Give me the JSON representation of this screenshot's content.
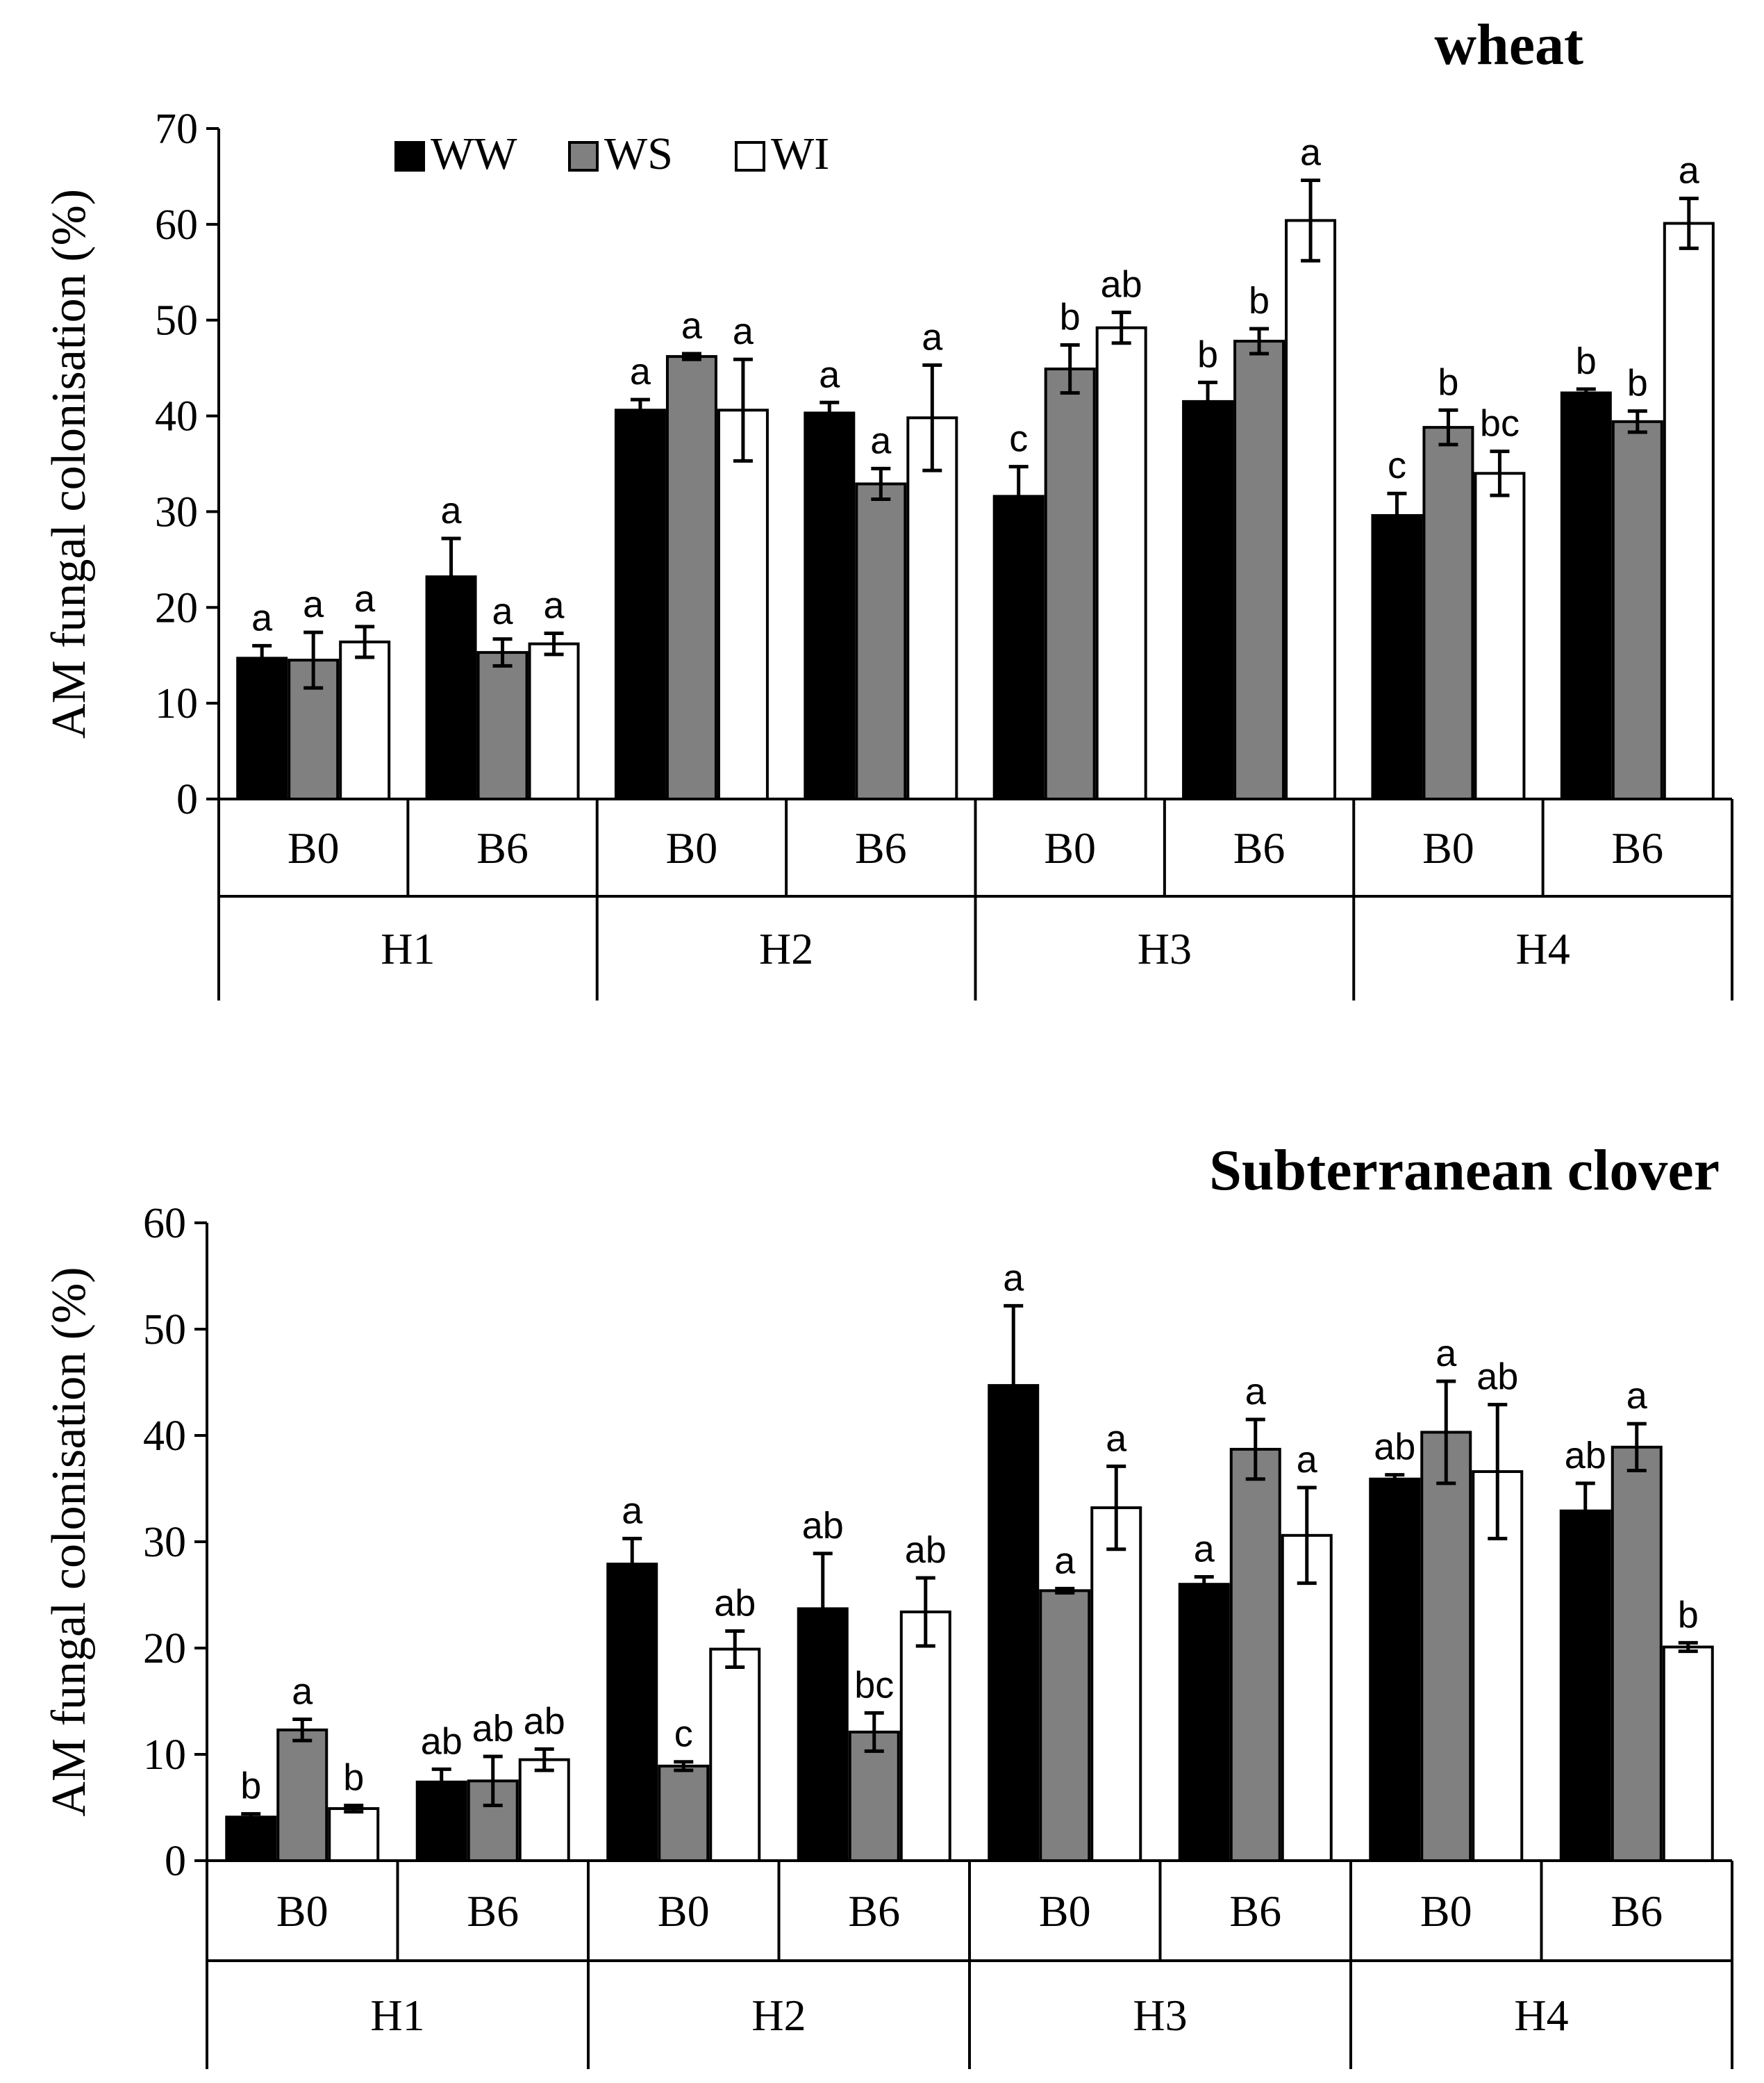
{
  "chart_data": [
    {
      "type": "bar",
      "title": "wheat",
      "ylabel": "AM fungal colonisation (%)",
      "xlabel": "",
      "ylim": [
        0,
        70
      ],
      "yticks": [
        0,
        10,
        20,
        30,
        40,
        50,
        60,
        70
      ],
      "legend": {
        "placement": "top-left",
        "entries": [
          "WW",
          "WS",
          "WI"
        ]
      },
      "groups": [
        {
          "name": "H1",
          "subgroups": [
            "B0",
            "B6"
          ]
        },
        {
          "name": "H2",
          "subgroups": [
            "B0",
            "B6"
          ]
        },
        {
          "name": "H3",
          "subgroups": [
            "B0",
            "B6"
          ]
        },
        {
          "name": "H4",
          "subgroups": [
            "B0",
            "B6"
          ]
        }
      ],
      "categories": [
        "H1 B0",
        "H1 B6",
        "H2 B0",
        "H2 B6",
        "H3 B0",
        "H3 B6",
        "H4 B0",
        "H4 B6"
      ],
      "series": [
        {
          "name": "WW",
          "color": "#000000",
          "values": [
            14.7,
            23.2,
            40.6,
            40.3,
            31.6,
            41.5,
            29.6,
            42.4
          ],
          "errors": [
            1.3,
            4.0,
            1.1,
            1.1,
            3.1,
            2.0,
            2.3,
            0.4
          ],
          "labels": [
            "a",
            "a",
            "a",
            "a",
            "c",
            "b",
            "c",
            "b"
          ]
        },
        {
          "name": "WS",
          "color": "#808080",
          "values": [
            14.5,
            15.3,
            46.2,
            32.9,
            44.9,
            47.8,
            38.8,
            39.4
          ],
          "errors": [
            2.9,
            1.4,
            0.3,
            1.6,
            2.5,
            1.3,
            1.8,
            1.1
          ],
          "labels": [
            "a",
            "a",
            "a",
            "a",
            "b",
            "b",
            "b",
            "b"
          ]
        },
        {
          "name": "WI",
          "color": "#ffffff",
          "values": [
            16.4,
            16.2,
            40.6,
            39.8,
            49.2,
            60.4,
            34.0,
            60.1
          ],
          "errors": [
            1.6,
            1.1,
            5.3,
            5.5,
            1.6,
            4.2,
            2.3,
            2.6
          ],
          "labels": [
            "a",
            "a",
            "a",
            "a",
            "ab",
            "a",
            "bc",
            "a"
          ]
        }
      ]
    },
    {
      "type": "bar",
      "title": "Subterranean  clover",
      "ylabel": "AM fungal colonisation (%)",
      "xlabel": "",
      "ylim": [
        0,
        60
      ],
      "yticks": [
        0,
        10,
        20,
        30,
        40,
        50,
        60
      ],
      "groups": [
        {
          "name": "H1",
          "subgroups": [
            "B0",
            "B6"
          ]
        },
        {
          "name": "H2",
          "subgroups": [
            "B0",
            "B6"
          ]
        },
        {
          "name": "H3",
          "subgroups": [
            "B0",
            "B6"
          ]
        },
        {
          "name": "H4",
          "subgroups": [
            "B0",
            "B6"
          ]
        }
      ],
      "categories": [
        "H1 B0",
        "H1 B6",
        "H2 B0",
        "H2 B6",
        "H3 B0",
        "H3 B6",
        "H4 B0",
        "H4 B6"
      ],
      "series": [
        {
          "name": "WW",
          "color": "#000000",
          "values": [
            4.1,
            7.4,
            27.9,
            23.7,
            44.7,
            26.0,
            35.9,
            32.9
          ],
          "errors": [
            0.3,
            1.2,
            2.4,
            5.2,
            7.5,
            0.7,
            0.4,
            2.6
          ],
          "labels": [
            "b",
            "ab",
            "a",
            "ab",
            "a",
            "a",
            "ab",
            "ab"
          ]
        },
        {
          "name": "WS",
          "color": "#808080",
          "values": [
            12.3,
            7.5,
            8.9,
            12.1,
            25.4,
            38.7,
            40.3,
            38.9
          ],
          "errors": [
            1.0,
            2.3,
            0.4,
            1.8,
            0.2,
            2.8,
            4.8,
            2.2
          ],
          "labels": [
            "a",
            "ab",
            "c",
            "bc",
            "a",
            "a",
            "a",
            "a"
          ]
        },
        {
          "name": "WI",
          "color": "#ffffff",
          "values": [
            4.9,
            9.5,
            19.9,
            23.4,
            33.2,
            30.6,
            36.6,
            20.1
          ],
          "errors": [
            0.3,
            1.0,
            1.7,
            3.2,
            3.9,
            4.5,
            6.3,
            0.4
          ],
          "labels": [
            "b",
            "ab",
            "ab",
            "ab",
            "a",
            "a",
            "ab",
            "b"
          ]
        }
      ]
    }
  ]
}
